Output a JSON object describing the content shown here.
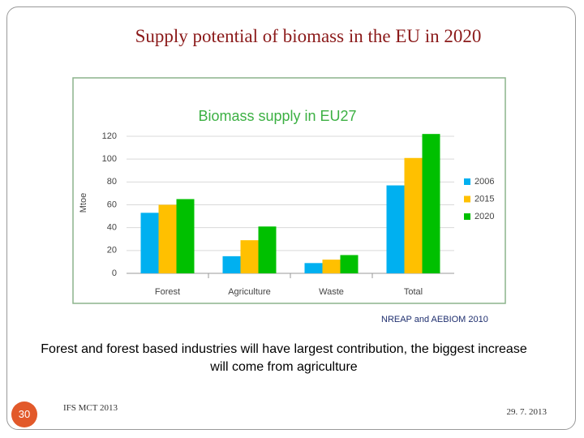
{
  "slide": {
    "title": "Supply potential of biomass in the EU in 2020",
    "source": "NREAP and AEBIOM 2010",
    "caption": "Forest and forest based industries will have largest contribution, the biggest increase will come from agriculture",
    "footer": "IFS MCT 2013",
    "date": "29. 7. 2013",
    "page_number": "30"
  },
  "chart_data": {
    "type": "bar",
    "title": "Biomass supply in EU27",
    "y_label": "Mtoe",
    "categories": [
      "Forest",
      "Agriculture",
      "Waste",
      "Total"
    ],
    "series": [
      {
        "name": "2006",
        "color": "#00b0f0",
        "values": [
          53,
          15,
          9,
          77
        ]
      },
      {
        "name": "2015",
        "color": "#ffc000",
        "values": [
          60,
          29,
          12,
          101
        ]
      },
      {
        "name": "2020",
        "color": "#00c000",
        "values": [
          65,
          41,
          16,
          122
        ]
      }
    ],
    "ylim": [
      0,
      120
    ],
    "yticks": [
      0,
      20,
      40,
      60,
      80,
      100,
      120
    ],
    "grid": true,
    "legend": "right"
  }
}
